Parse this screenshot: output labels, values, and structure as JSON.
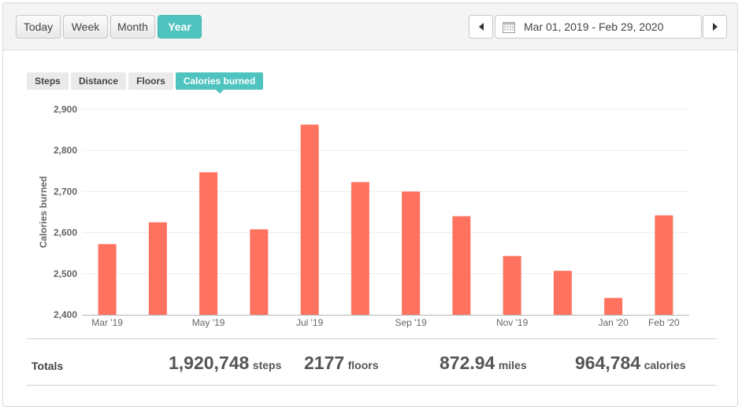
{
  "header": {
    "periods": [
      "Today",
      "Week",
      "Month",
      "Year"
    ],
    "active_period": "Year",
    "date_range": "Mar 01, 2019 - Feb 29, 2020"
  },
  "metrics": {
    "tabs": [
      "Steps",
      "Distance",
      "Floors",
      "Calories burned"
    ],
    "active": "Calories burned"
  },
  "colors": {
    "accent": "#4fc3bf",
    "bar": "#ff7260"
  },
  "chart_data": {
    "type": "bar",
    "ylabel": "Calories burned",
    "xlabel": "",
    "ylim": [
      2400,
      2900
    ],
    "yticks": [
      2400,
      2500,
      2600,
      2700,
      2800,
      2900
    ],
    "ytick_labels": [
      "2,400",
      "2,500",
      "2,600",
      "2,700",
      "2,800",
      "2,900"
    ],
    "categories": [
      "Mar '19",
      "Apr '19",
      "May '19",
      "Jun '19",
      "Jul '19",
      "Aug '19",
      "Sep '19",
      "Oct '19",
      "Nov '19",
      "Dec '19",
      "Jan '20",
      "Feb '20"
    ],
    "xtick_labels": [
      "Mar '19",
      "",
      "May '19",
      "",
      "Jul '19",
      "",
      "Sep '19",
      "",
      "Nov '19",
      "",
      "Jan '20",
      "Feb '20"
    ],
    "values": [
      2572,
      2625,
      2747,
      2608,
      2863,
      2723,
      2700,
      2640,
      2543,
      2507,
      2441,
      2642
    ],
    "grid": true,
    "legend": "none"
  },
  "totals": {
    "label": "Totals",
    "items": [
      {
        "value": "1,920,748",
        "unit": "steps"
      },
      {
        "value": "2177",
        "unit": "floors"
      },
      {
        "value": "872.94",
        "unit": "miles"
      },
      {
        "value": "964,784",
        "unit": "calories"
      }
    ]
  }
}
